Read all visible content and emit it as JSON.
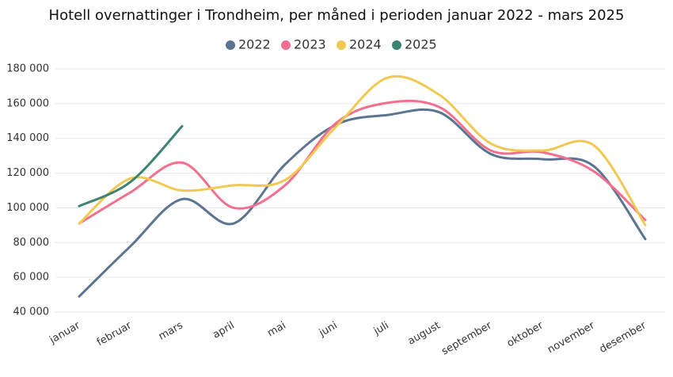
{
  "chart_data": {
    "type": "line",
    "title": "Hotell overnattinger i Trondheim, per måned i perioden januar 2022 - mars 2025",
    "categories": [
      "januar",
      "februar",
      "mars",
      "april",
      "mai",
      "juni",
      "juli",
      "august",
      "september",
      "oktober",
      "november",
      "desember"
    ],
    "series": [
      {
        "name": "2022",
        "color": "#5b7590",
        "values": [
          49000,
          78000,
          105000,
          91000,
          125000,
          148000,
          153500,
          155000,
          131000,
          128000,
          124000,
          82000
        ]
      },
      {
        "name": "2023",
        "color": "#f2708d",
        "values": [
          91000,
          109000,
          126000,
          100000,
          113000,
          149000,
          160500,
          158000,
          133000,
          132000,
          121000,
          93000
        ]
      },
      {
        "name": "2024",
        "color": "#f0c952",
        "values": [
          91000,
          117000,
          110000,
          113000,
          116000,
          147000,
          175000,
          165000,
          137000,
          133000,
          136000,
          90000
        ]
      },
      {
        "name": "2025",
        "color": "#3d8272",
        "values": [
          101000,
          115000,
          147000,
          null,
          null,
          null,
          null,
          null,
          null,
          null,
          null,
          null
        ]
      }
    ],
    "ylim": [
      40000,
      180000
    ],
    "yticks": [
      {
        "value": 40000,
        "label": "40 000"
      },
      {
        "value": 60000,
        "label": "60 000"
      },
      {
        "value": 80000,
        "label": "80 000"
      },
      {
        "value": 100000,
        "label": "100 000"
      },
      {
        "value": 120000,
        "label": "120 000"
      },
      {
        "value": 140000,
        "label": "140 000"
      },
      {
        "value": 160000,
        "label": "160 000"
      },
      {
        "value": 180000,
        "label": "180 000"
      }
    ],
    "grid": true,
    "legend": "top"
  }
}
